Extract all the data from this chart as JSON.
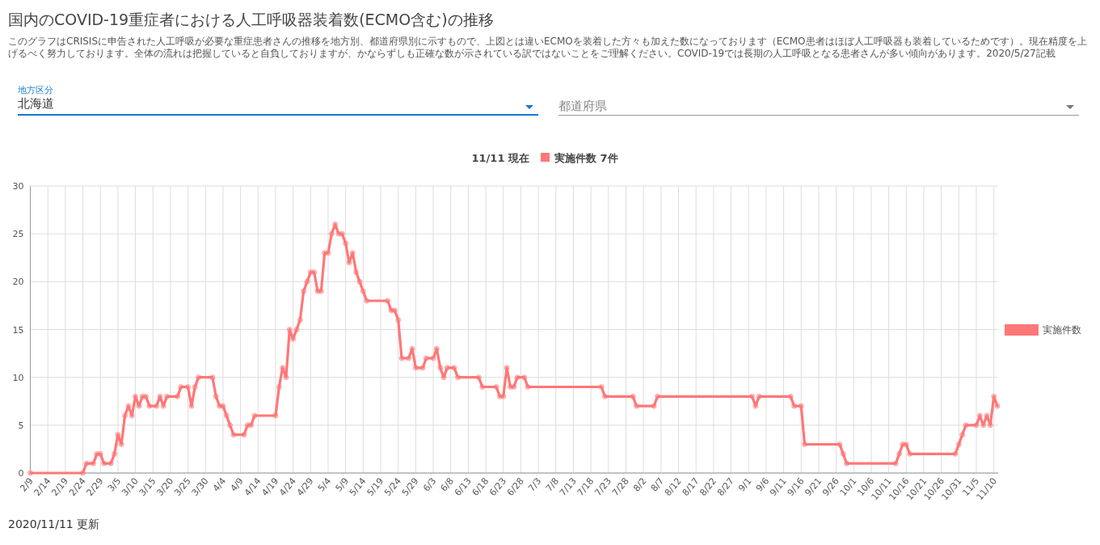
{
  "chart_data": {
    "type": "line",
    "title": "国内のCOVID-19重症者における人工呼吸器装着数(ECMO含む)の推移",
    "subtitle": "このグラフはCRISISに申告された人工呼吸が必要な重症患者さんの推移を地方別、都道府県別に示すもので、上図とは違いECMOを装着した方々も加えた数になっております（ECMO患者はほぼ人工呼吸器も装着しているためです）。現在精度を上げるべく努力しております。全体の流れは把握していると自負しておりますが、かならずしも正確な数が示されている訳ではないことをご理解ください。COVID-19では長期の人工呼吸となる患者さんが多い傾向があります。2020/5/27記載",
    "annotations": [
      "地方区分",
      "北海道",
      "都道府県",
      "11/11 現在",
      "実施件数 7件",
      "2020/11/11 更新"
    ],
    "xlim": [
      "--02-09",
      "--11-11"
    ],
    "xticks": [
      {
        "value": "--02-09",
        "label": "2/9"
      },
      {
        "value": "--02-14",
        "label": "2/14"
      },
      {
        "value": "--02-19",
        "label": "2/19"
      },
      {
        "value": "--02-24",
        "label": "2/24"
      },
      {
        "value": "--02-29",
        "label": "2/29"
      },
      {
        "value": "--03-05",
        "label": "3/5"
      },
      {
        "value": "--03-10",
        "label": "3/10"
      },
      {
        "value": "--03-15",
        "label": "3/15"
      },
      {
        "value": "--03-20",
        "label": "3/20"
      },
      {
        "value": "--03-25",
        "label": "3/25"
      },
      {
        "value": "--03-30",
        "label": "3/30"
      },
      {
        "value": "--04-04",
        "label": "4/4"
      },
      {
        "value": "--04-09",
        "label": "4/9"
      },
      {
        "value": "--04-14",
        "label": "4/14"
      },
      {
        "value": "--04-19",
        "label": "4/19"
      },
      {
        "value": "--04-24",
        "label": "4/24"
      },
      {
        "value": "--04-29",
        "label": "4/29"
      },
      {
        "value": "--05-04",
        "label": "5/4"
      },
      {
        "value": "--05-09",
        "label": "5/9"
      },
      {
        "value": "--05-14",
        "label": "5/14"
      },
      {
        "value": "--05-19",
        "label": "5/19"
      },
      {
        "value": "--05-24",
        "label": "5/24"
      },
      {
        "value": "--05-29",
        "label": "5/29"
      },
      {
        "value": "--06-03",
        "label": "6/3"
      },
      {
        "value": "--06-08",
        "label": "6/8"
      },
      {
        "value": "--06-13",
        "label": "6/13"
      },
      {
        "value": "--06-18",
        "label": "6/18"
      },
      {
        "value": "--06-23",
        "label": "6/23"
      },
      {
        "value": "--06-28",
        "label": "6/28"
      },
      {
        "value": "--07-03",
        "label": "7/3"
      },
      {
        "value": "--07-08",
        "label": "7/8"
      },
      {
        "value": "--07-13",
        "label": "7/13"
      },
      {
        "value": "--07-18",
        "label": "7/18"
      },
      {
        "value": "--07-23",
        "label": "7/23"
      },
      {
        "value": "--07-28",
        "label": "7/28"
      },
      {
        "value": "--08-02",
        "label": "8/2"
      },
      {
        "value": "--08-07",
        "label": "8/7"
      },
      {
        "value": "--08-12",
        "label": "8/12"
      },
      {
        "value": "--08-17",
        "label": "8/17"
      },
      {
        "value": "--08-22",
        "label": "8/22"
      },
      {
        "value": "--08-27",
        "label": "8/27"
      },
      {
        "value": "--09-01",
        "label": "9/1"
      },
      {
        "value": "--09-06",
        "label": "9/6"
      },
      {
        "value": "--09-11",
        "label": "9/11"
      },
      {
        "value": "--09-16",
        "label": "9/16"
      },
      {
        "value": "--09-21",
        "label": "9/21"
      },
      {
        "value": "--09-26",
        "label": "9/26"
      },
      {
        "value": "--10-01",
        "label": "10/1"
      },
      {
        "value": "--10-06",
        "label": "10/6"
      },
      {
        "value": "--10-11",
        "label": "10/11"
      },
      {
        "value": "--10-16",
        "label": "10/16"
      },
      {
        "value": "--10-21",
        "label": "10/21"
      },
      {
        "value": "--10-26",
        "label": "10/26"
      },
      {
        "value": "--10-31",
        "label": "10/31"
      },
      {
        "value": "--11-05",
        "label": "11/5"
      },
      {
        "value": "--11-10",
        "label": "11/10"
      }
    ],
    "ylim": [
      0,
      30
    ],
    "yticks": [
      0,
      5,
      10,
      15,
      20,
      25,
      30
    ],
    "grid": true,
    "legend": "right",
    "marker": "circle",
    "x": [
      "--02-09",
      "--02-24",
      "--02-25",
      "--02-27",
      "--02-28",
      "--02-29",
      "--03-01",
      "--03-03",
      "--03-04",
      "--03-05",
      "--03-06",
      "--03-07",
      "--03-08",
      "--03-09",
      "--03-10",
      "--03-11",
      "--03-12",
      "--03-13",
      "--03-14",
      "--03-16",
      "--03-17",
      "--03-18",
      "--03-19",
      "--03-22",
      "--03-23",
      "--03-25",
      "--03-26",
      "--03-27",
      "--03-28",
      "--04-01",
      "--04-02",
      "--04-03",
      "--04-04",
      "--04-05",
      "--04-06",
      "--04-07",
      "--04-10",
      "--04-11",
      "--04-12",
      "--04-13",
      "--04-19",
      "--04-20",
      "--04-21",
      "--04-22",
      "--04-23",
      "--04-24",
      "--04-25",
      "--04-26",
      "--04-27",
      "--04-28",
      "--04-29",
      "--04-30",
      "--05-01",
      "--05-02",
      "--05-03",
      "--05-04",
      "--05-05",
      "--05-06",
      "--05-07",
      "--05-08",
      "--05-09",
      "--05-10",
      "--05-11",
      "--05-12",
      "--05-13",
      "--05-14",
      "--05-15",
      "--05-21",
      "--05-22",
      "--05-23",
      "--05-24",
      "--05-25",
      "--05-27",
      "--05-28",
      "--05-29",
      "--05-31",
      "--06-01",
      "--06-03",
      "--06-04",
      "--06-05",
      "--06-06",
      "--06-07",
      "--06-09",
      "--06-10",
      "--06-16",
      "--06-17",
      "--06-21",
      "--06-22",
      "--06-23",
      "--06-24",
      "--06-25",
      "--06-26",
      "--06-27",
      "--06-29",
      "--06-30",
      "--07-21",
      "--07-22",
      "--07-30",
      "--07-31",
      "--08-05",
      "--08-06",
      "--09-02",
      "--09-03",
      "--09-04",
      "--09-13",
      "--09-14",
      "--09-16",
      "--09-17",
      "--09-27",
      "--09-28",
      "--09-29",
      "--10-13",
      "--10-14",
      "--10-15",
      "--10-16",
      "--10-17",
      "--10-30",
      "--10-31",
      "--11-01",
      "--11-02",
      "--11-05",
      "--11-06",
      "--11-07",
      "--11-08",
      "--11-09",
      "--11-10",
      "--11-11"
    ],
    "series": [
      {
        "name": "実施件数",
        "color": "#ff7777",
        "values": [
          0,
          0,
          1,
          1,
          2,
          2,
          1,
          1,
          2,
          4,
          3,
          6,
          7,
          6,
          8,
          7,
          8,
          8,
          7,
          7,
          8,
          7,
          8,
          8,
          9,
          9,
          7,
          9,
          10,
          10,
          8,
          7,
          7,
          6,
          5,
          4,
          4,
          5,
          5,
          6,
          6,
          9,
          11,
          10,
          15,
          14,
          15,
          16,
          19,
          20,
          21,
          21,
          19,
          19,
          23,
          23,
          25,
          26,
          25,
          25,
          24,
          22,
          23,
          21,
          20,
          19,
          18,
          18,
          17,
          17,
          16,
          12,
          12,
          13,
          11,
          11,
          12,
          12,
          13,
          11,
          10,
          11,
          11,
          10,
          10,
          9,
          9,
          8,
          8,
          11,
          9,
          9,
          10,
          10,
          9,
          9,
          8,
          8,
          7,
          7,
          8,
          8,
          7,
          8,
          8,
          7,
          7,
          3,
          3,
          2,
          1,
          1,
          2,
          3,
          3,
          2,
          2,
          3,
          4,
          5,
          5,
          6,
          5,
          6,
          5,
          8,
          7
        ]
      }
    ]
  }
}
